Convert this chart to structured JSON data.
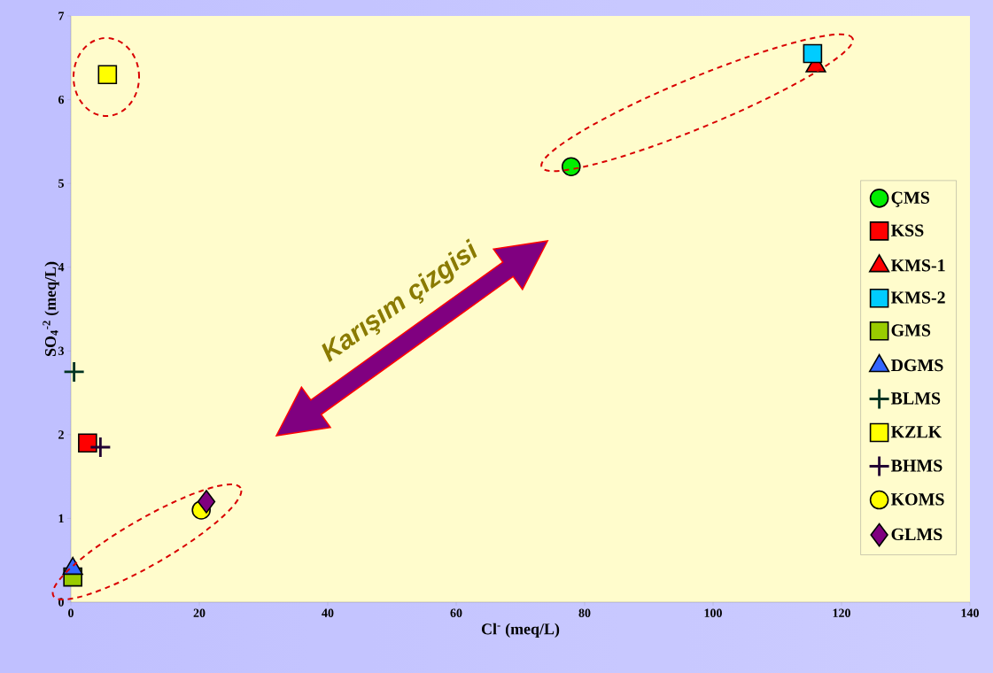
{
  "chart_data": {
    "type": "scatter",
    "xlabel": "Cl$^{-}$ (meq/L)",
    "ylabel": "SO$_{4}$$^{-2}$ (meq/L)",
    "xlim": [
      0,
      140
    ],
    "ylim": [
      0,
      7
    ],
    "xticks": [
      0,
      20,
      40,
      60,
      80,
      100,
      120,
      140
    ],
    "yticks": [
      0,
      1,
      2,
      3,
      4,
      5,
      6,
      7
    ],
    "legend": "right",
    "grid": false,
    "annotations": [
      "Karışım çizgisi"
    ],
    "series": [
      {
        "name": "ÇMS",
        "color": "#00ee00",
        "marker": "circle",
        "x": [
          77.9
        ],
        "values": [
          5.2
        ]
      },
      {
        "name": "KSS",
        "color": "#ff0000",
        "marker": "square",
        "x": [
          2.6
        ],
        "values": [
          1.9
        ]
      },
      {
        "name": "KMS-1",
        "color": "#ff0000",
        "marker": "triangle",
        "x": [
          116
        ],
        "values": [
          6.4
        ]
      },
      {
        "name": "KMS-2",
        "color": "#00ccff",
        "marker": "square",
        "x": [
          115.5
        ],
        "values": [
          6.55
        ]
      },
      {
        "name": "GMS",
        "color": "#99cc00",
        "marker": "square",
        "x": [
          0.3
        ],
        "values": [
          0.3
        ]
      },
      {
        "name": "DGMS",
        "color": "#3366ff",
        "marker": "triangle",
        "x": [
          0.3
        ],
        "values": [
          0.4
        ]
      },
      {
        "name": "BLMS",
        "color": "#003322",
        "marker": "cross",
        "x": [
          0.5
        ],
        "values": [
          2.75
        ]
      },
      {
        "name": "KZLK",
        "color": "#ffff00",
        "marker": "square",
        "x": [
          5.7
        ],
        "values": [
          6.3
        ]
      },
      {
        "name": "BHMS",
        "color": "#220033",
        "marker": "cross",
        "x": [
          4.6
        ],
        "values": [
          1.85
        ]
      },
      {
        "name": "KOMS",
        "color": "#ffff00",
        "marker": "circle",
        "x": [
          20.3
        ],
        "values": [
          1.1
        ]
      },
      {
        "name": "GLMS",
        "color": "#800080",
        "marker": "diamond",
        "x": [
          21.1
        ],
        "values": [
          1.2
        ]
      }
    ]
  }
}
